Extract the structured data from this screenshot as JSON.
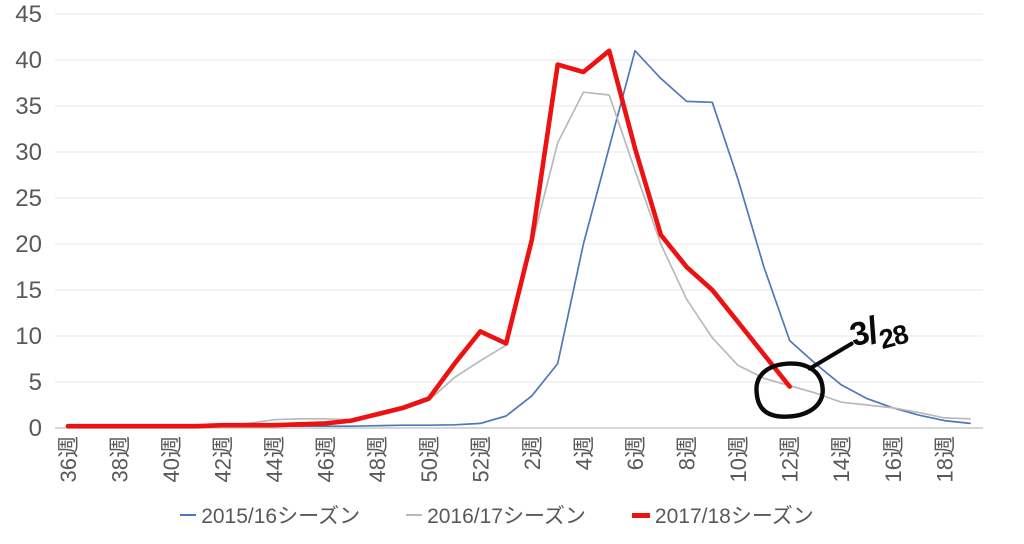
{
  "chart_data": {
    "type": "line",
    "title": "",
    "xlabel": "",
    "ylabel": "",
    "ylim": [
      0,
      45
    ],
    "grid": true,
    "legend_position": "bottom",
    "y_ticks": [
      0,
      5,
      10,
      15,
      20,
      25,
      30,
      35,
      40,
      45
    ],
    "x_tick_labels": [
      "36週",
      "38週",
      "40週",
      "42週",
      "44週",
      "46週",
      "48週",
      "50週",
      "52週",
      "2週",
      "4週",
      "6週",
      "8週",
      "10週",
      "12週",
      "14週",
      "16週",
      "18週"
    ],
    "categories": [
      "36週",
      "37週",
      "38週",
      "39週",
      "40週",
      "41週",
      "42週",
      "43週",
      "44週",
      "45週",
      "46週",
      "47週",
      "48週",
      "49週",
      "50週",
      "51週",
      "52週",
      "1週",
      "2週",
      "3週",
      "4週",
      "5週",
      "6週",
      "7週",
      "8週",
      "9週",
      "10週",
      "11週",
      "12週",
      "13週",
      "14週",
      "15週",
      "16週",
      "17週",
      "18週",
      "19週"
    ],
    "series": [
      {
        "name": "2015/16シーズン",
        "values": [
          0.15,
          0.15,
          0.15,
          0.15,
          0.15,
          0.15,
          0.2,
          0.2,
          0.2,
          0.2,
          0.2,
          0.2,
          0.25,
          0.3,
          0.3,
          0.35,
          0.5,
          1.3,
          3.5,
          7,
          20,
          30.5,
          41,
          38,
          35.5,
          35.4,
          27,
          17.5,
          9.5,
          7,
          4.7,
          3.2,
          2.2,
          1.4,
          0.8,
          0.5
        ]
      },
      {
        "name": "2016/17シーズン",
        "values": [
          0.2,
          0.2,
          0.2,
          0.2,
          0.2,
          0.3,
          0.3,
          0.5,
          0.9,
          1.0,
          1.0,
          0.9,
          1.3,
          2.0,
          3.0,
          5.5,
          7.3,
          9.0,
          20,
          31,
          36.5,
          36.2,
          28,
          20,
          14,
          9.8,
          6.8,
          5.4,
          4.6,
          3.8,
          2.8,
          2.5,
          2.2,
          1.7,
          1.1,
          1.0
        ]
      },
      {
        "name": "2017/18シーズン",
        "values": [
          0.2,
          0.2,
          0.2,
          0.2,
          0.2,
          0.2,
          0.3,
          0.3,
          0.3,
          0.4,
          0.5,
          0.8,
          1.5,
          2.2,
          3.2,
          7,
          10.5,
          9.2,
          20.5,
          39.5,
          38.7,
          41,
          30.4,
          21,
          17.5,
          15,
          11.5,
          8,
          4.5
        ]
      }
    ],
    "annotation": {
      "label": "3/28",
      "target_series": "2017/18シーズン",
      "target_category": "12週",
      "target_value": 4.5
    }
  },
  "colors": {
    "series": [
      "#4d79b8",
      "#b9b9b9",
      "#ed1111"
    ],
    "axis_text": "#595959",
    "gridline": "#e7e7e7",
    "axis_line": "#c9c9c9",
    "annotation": "#0a0a0a"
  }
}
